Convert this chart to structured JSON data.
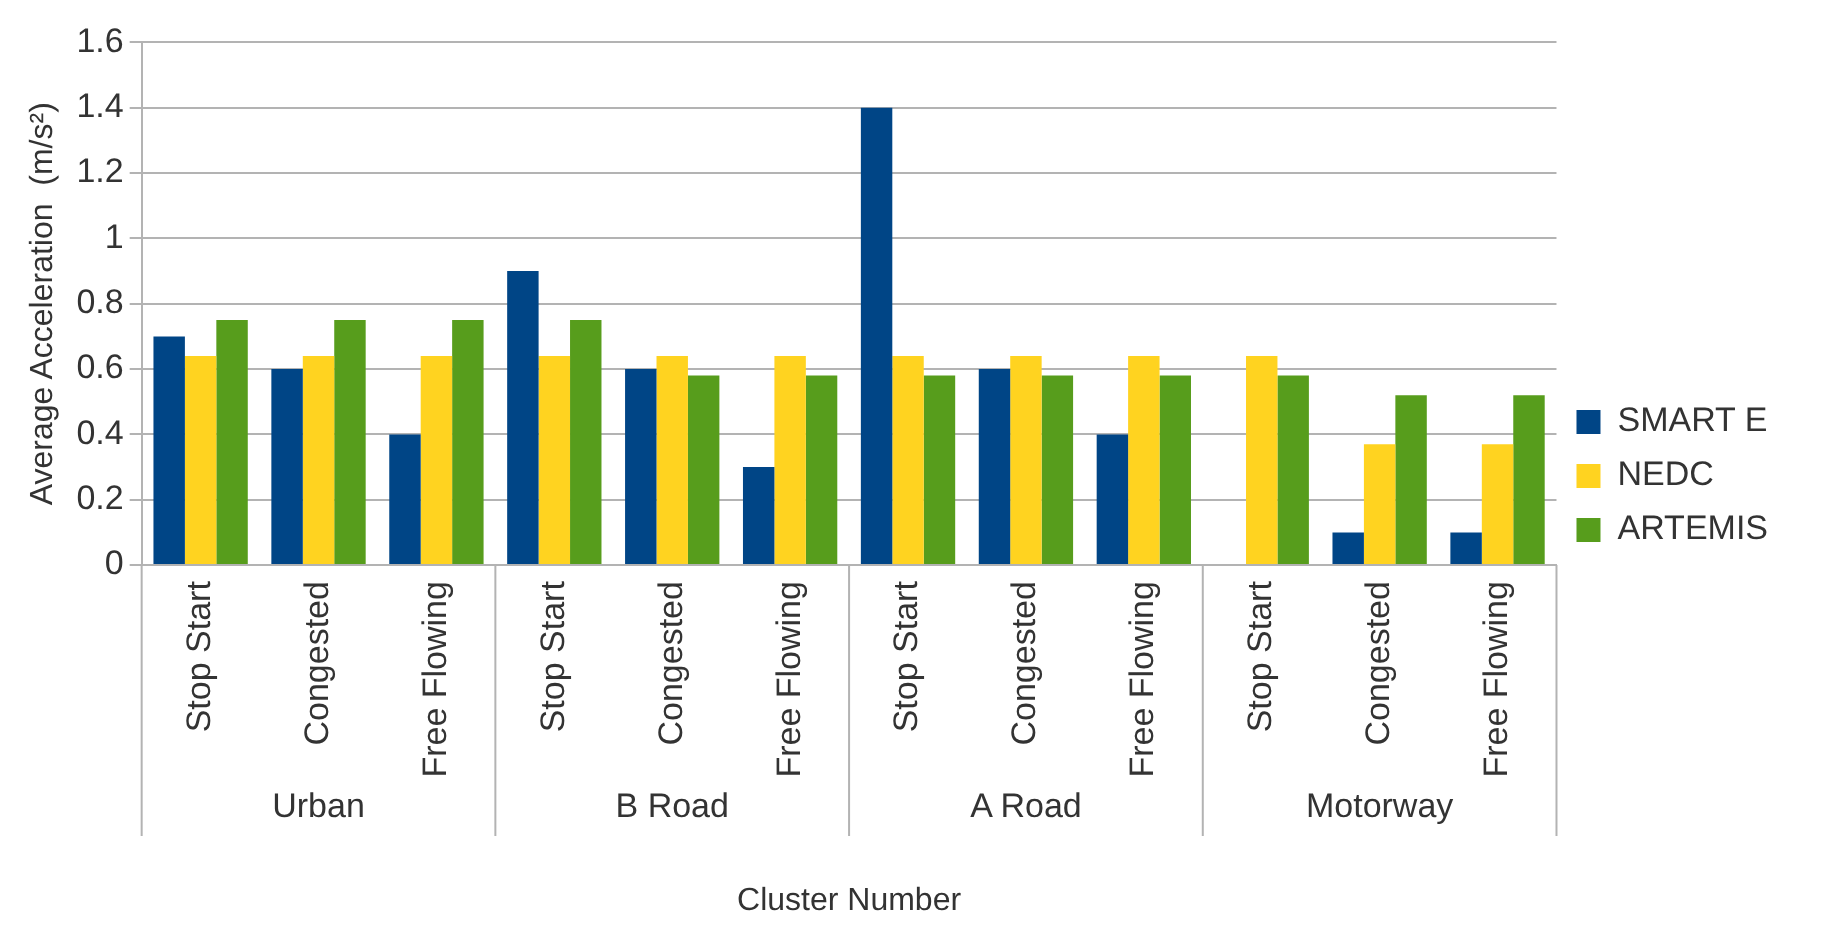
{
  "chart_data": {
    "type": "bar",
    "ylabel": "Average Acceleration  (m/s²)",
    "xlabel": "Cluster Number",
    "categories": [
      "Stop Start",
      "Congested",
      "Free Flowing",
      "Stop Start",
      "Congested",
      "Free Flowing",
      "Stop Start",
      "Congested",
      "Free Flowing",
      "Stop Start",
      "Congested",
      "Free Flowing"
    ],
    "annotations": [
      "Urban",
      "B Road",
      "A Road",
      "Motorway"
    ],
    "series": [
      {
        "name": "SMART E",
        "color": "#004586",
        "values": [
          0.7,
          0.6,
          0.4,
          0.9,
          0.6,
          0.3,
          1.4,
          0.6,
          0.4,
          0,
          0.1,
          0.1
        ]
      },
      {
        "name": "NEDC",
        "color": "#ffd320",
        "values": [
          0.64,
          0.64,
          0.64,
          0.64,
          0.64,
          0.64,
          0.64,
          0.64,
          0.64,
          0.64,
          0.37,
          0.37
        ]
      },
      {
        "name": "ARTEMIS",
        "color": "#579d1c",
        "values": [
          0.75,
          0.75,
          0.75,
          0.75,
          0.58,
          0.58,
          0.58,
          0.58,
          0.58,
          0.58,
          0.52,
          0.52
        ]
      }
    ],
    "ylim": [
      0,
      1.6
    ],
    "yticks": [
      0,
      0.2,
      0.4,
      0.6,
      0.8,
      1,
      1.2,
      1.4,
      1.6
    ],
    "grid": "y",
    "legend": "right"
  }
}
